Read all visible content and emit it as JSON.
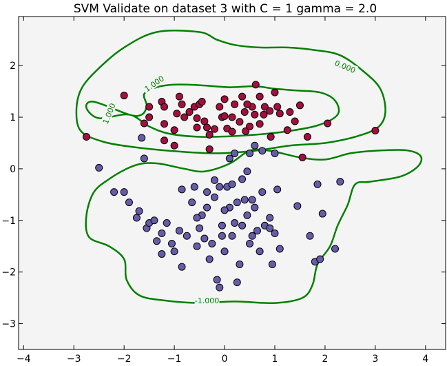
{
  "chart_data": {
    "type": "scatter",
    "title": "SVM Validate on dataset 3 with C = 1 gamma = 2.0",
    "xlabel": "",
    "ylabel": "",
    "xlim": [
      -4.1,
      4.4
    ],
    "ylim": [
      -3.5,
      2.95
    ],
    "x_ticks": [
      -4,
      -3,
      -2,
      -1,
      0,
      1,
      2,
      3,
      4
    ],
    "y_ticks": [
      -3,
      -2,
      -1,
      0,
      1,
      2
    ],
    "x_tick_labels": [
      "−4",
      "−3",
      "−2",
      "−1",
      "0",
      "1",
      "2",
      "3",
      "4"
    ],
    "y_tick_labels": [
      "−3",
      "−2",
      "−1",
      "0",
      "1",
      "2"
    ],
    "grid": false,
    "background_color": "#f4f4f4",
    "contour_color": "#008000",
    "contour_labels": [
      {
        "text": "0.000",
        "x": 2.4,
        "y": 1.98,
        "rotate": 22
      },
      {
        "text": "1.000",
        "x": -1.4,
        "y": 1.65,
        "rotate": -35
      },
      {
        "text": "1.000",
        "x": -2.3,
        "y": 1.07,
        "rotate": -68
      },
      {
        "text": "-1.000",
        "x": -0.35,
        "y": -2.55,
        "rotate": 0
      }
    ],
    "contours": [
      {
        "level": 0.0,
        "points": [
          [
            -1.35,
            2.65
          ],
          [
            -2.0,
            2.35
          ],
          [
            -2.5,
            1.95
          ],
          [
            -2.85,
            1.55
          ],
          [
            -2.95,
            1.1
          ],
          [
            -2.85,
            0.72
          ],
          [
            -2.4,
            0.52
          ],
          [
            -1.8,
            0.42
          ],
          [
            -1.1,
            0.35
          ],
          [
            -0.2,
            0.3
          ],
          [
            0.6,
            0.35
          ],
          [
            1.3,
            0.45
          ],
          [
            2.0,
            0.5
          ],
          [
            2.6,
            0.62
          ],
          [
            3.05,
            0.8
          ],
          [
            3.2,
            1.1
          ],
          [
            3.1,
            1.55
          ],
          [
            2.75,
            1.9
          ],
          [
            2.3,
            2.2
          ],
          [
            1.8,
            2.3
          ],
          [
            1.25,
            2.35
          ],
          [
            0.7,
            2.35
          ],
          [
            0.2,
            2.4
          ],
          [
            -0.15,
            2.5
          ],
          [
            -0.5,
            2.65
          ]
        ]
      },
      {
        "level": 1.0,
        "points": [
          [
            -2.6,
            1.3
          ],
          [
            -2.75,
            1.18
          ],
          [
            -2.5,
            0.98
          ],
          [
            -1.9,
            1.05
          ],
          [
            -1.5,
            0.82
          ],
          [
            -1.1,
            0.68
          ],
          [
            -0.5,
            0.62
          ],
          [
            0.1,
            0.63
          ],
          [
            0.6,
            0.66
          ],
          [
            1.2,
            0.72
          ],
          [
            1.85,
            0.84
          ],
          [
            2.25,
            1.05
          ],
          [
            2.2,
            1.32
          ],
          [
            1.9,
            1.48
          ],
          [
            1.4,
            1.52
          ],
          [
            1.0,
            1.55
          ],
          [
            0.6,
            1.6
          ],
          [
            0.1,
            1.58
          ],
          [
            -0.5,
            1.62
          ],
          [
            -1.0,
            1.63
          ],
          [
            -1.35,
            1.58
          ],
          [
            -1.6,
            1.45
          ],
          [
            -1.55,
            1.22
          ],
          [
            -1.65,
            1.05
          ],
          [
            -1.9,
            1.05
          ]
        ]
      },
      {
        "level": -1.0,
        "points": [
          [
            -1.65,
            0.1
          ],
          [
            -1.3,
            0.1
          ],
          [
            -0.8,
            0.0
          ],
          [
            -0.4,
            -0.05
          ],
          [
            0.1,
            0.1
          ],
          [
            0.5,
            0.35
          ],
          [
            0.9,
            0.35
          ],
          [
            1.5,
            0.22
          ],
          [
            2.0,
            0.18
          ],
          [
            2.5,
            0.3
          ],
          [
            3.0,
            0.35
          ],
          [
            3.6,
            0.36
          ],
          [
            3.9,
            0.25
          ],
          [
            3.85,
            0.05
          ],
          [
            3.5,
            -0.15
          ],
          [
            2.9,
            -0.25
          ],
          [
            2.6,
            -0.3
          ],
          [
            2.45,
            -0.7
          ],
          [
            2.25,
            -1.1
          ],
          [
            2.1,
            -1.5
          ],
          [
            1.85,
            -1.85
          ],
          [
            1.75,
            -2.25
          ],
          [
            1.55,
            -2.5
          ],
          [
            1.0,
            -2.6
          ],
          [
            0.2,
            -2.57
          ],
          [
            -0.5,
            -2.6
          ],
          [
            -1.2,
            -2.55
          ],
          [
            -1.7,
            -2.45
          ],
          [
            -1.95,
            -2.15
          ],
          [
            -2.0,
            -1.75
          ],
          [
            -2.3,
            -1.5
          ],
          [
            -2.7,
            -1.32
          ],
          [
            -2.75,
            -0.9
          ],
          [
            -2.6,
            -0.45
          ],
          [
            -2.3,
            -0.2
          ],
          [
            -1.95,
            0.0
          ]
        ]
      }
    ],
    "series": [
      {
        "color": "#a50f3f",
        "points": [
          [
            -2.75,
            0.62
          ],
          [
            -2.0,
            1.42
          ],
          [
            -1.6,
            0.88
          ],
          [
            -1.5,
            1.0
          ],
          [
            -1.5,
            1.2
          ],
          [
            -1.25,
            1.3
          ],
          [
            -1.2,
            1.2
          ],
          [
            -1.2,
            0.87
          ],
          [
            -1.2,
            0.55
          ],
          [
            -1.0,
            0.45
          ],
          [
            -0.95,
            1.07
          ],
          [
            -1.0,
            0.75
          ],
          [
            -0.8,
            1.0
          ],
          [
            -0.9,
            1.4
          ],
          [
            -0.85,
            1.25
          ],
          [
            -0.7,
            1.1
          ],
          [
            -0.6,
            1.2
          ],
          [
            -0.55,
            0.8
          ],
          [
            -0.5,
            1.25
          ],
          [
            -0.45,
            1.3
          ],
          [
            -0.4,
            0.92
          ],
          [
            -0.35,
            0.8
          ],
          [
            -0.3,
            0.38
          ],
          [
            -0.3,
            0.66
          ],
          [
            -0.2,
            0.77
          ],
          [
            -0.1,
            1.2
          ],
          [
            -0.05,
            1.0
          ],
          [
            0.0,
            1.35
          ],
          [
            0.05,
            0.78
          ],
          [
            0.15,
            1.0
          ],
          [
            0.2,
            1.25
          ],
          [
            0.3,
            0.91
          ],
          [
            0.35,
            1.4
          ],
          [
            0.4,
            1.1
          ],
          [
            0.42,
            0.73
          ],
          [
            0.5,
            0.82
          ],
          [
            0.55,
            1.2
          ],
          [
            0.6,
            1.05
          ],
          [
            0.62,
            1.63
          ],
          [
            0.7,
            0.87
          ],
          [
            0.78,
            1.05
          ],
          [
            0.8,
            1.2
          ],
          [
            0.9,
            1.12
          ],
          [
            1.0,
            1.48
          ],
          [
            1.05,
            1.2
          ],
          [
            0.92,
            0.62
          ],
          [
            1.1,
            1.07
          ],
          [
            1.25,
            0.75
          ],
          [
            1.3,
            1.1
          ],
          [
            1.4,
            0.92
          ],
          [
            1.5,
            1.23
          ],
          [
            1.65,
            0.62
          ],
          [
            1.55,
            0.22
          ],
          [
            2.05,
            0.88
          ],
          [
            3.0,
            0.74
          ],
          [
            0.7,
            1.4
          ],
          [
            -0.55,
            0.98
          ],
          [
            0.0,
            1.02
          ],
          [
            0.45,
            1.25
          ],
          [
            0.15,
            0.72
          ]
        ]
      },
      {
        "color": "#675caa",
        "points": [
          [
            -2.5,
            0.02
          ],
          [
            -2.2,
            -0.45
          ],
          [
            -2.0,
            -0.45
          ],
          [
            -1.9,
            -0.65
          ],
          [
            -1.75,
            -0.95
          ],
          [
            -1.7,
            -0.82
          ],
          [
            -1.65,
            0.6
          ],
          [
            -1.6,
            0.2
          ],
          [
            -1.55,
            -1.15
          ],
          [
            -1.5,
            -1.05
          ],
          [
            -1.4,
            -1.0
          ],
          [
            -1.25,
            -1.65
          ],
          [
            -1.15,
            -1.05
          ],
          [
            -1.05,
            -1.45
          ],
          [
            -1.0,
            -1.6
          ],
          [
            -0.9,
            -1.2
          ],
          [
            -0.85,
            -1.9
          ],
          [
            -0.85,
            -0.4
          ],
          [
            -0.75,
            -1.3
          ],
          [
            -0.65,
            -0.65
          ],
          [
            -0.6,
            -0.35
          ],
          [
            -0.55,
            -1.5
          ],
          [
            -0.5,
            -1.15
          ],
          [
            -0.45,
            -0.9
          ],
          [
            -0.4,
            -1.35
          ],
          [
            -0.35,
            -0.75
          ],
          [
            -0.3,
            -1.75
          ],
          [
            -0.25,
            -1.45
          ],
          [
            -0.2,
            -0.55
          ],
          [
            -0.15,
            -2.15
          ],
          [
            -0.1,
            -2.3
          ],
          [
            -0.05,
            -1.1
          ],
          [
            0.0,
            -1.6
          ],
          [
            0.05,
            -0.35
          ],
          [
            0.1,
            -0.75
          ],
          [
            0.15,
            -1.3
          ],
          [
            0.2,
            0.3
          ],
          [
            0.25,
            -0.65
          ],
          [
            0.3,
            -1.85
          ],
          [
            0.35,
            -1.1
          ],
          [
            0.4,
            -0.6
          ],
          [
            0.45,
            -0.9
          ],
          [
            0.5,
            -1.45
          ],
          [
            0.55,
            -1.3
          ],
          [
            0.6,
            -0.75
          ],
          [
            0.65,
            -1.2
          ],
          [
            0.7,
            -1.6
          ],
          [
            0.75,
            -0.45
          ],
          [
            0.8,
            -1.1
          ],
          [
            0.9,
            -0.95
          ],
          [
            1.0,
            -1.25
          ],
          [
            1.05,
            -0.4
          ],
          [
            0.95,
            -1.85
          ],
          [
            1.1,
            -1.55
          ],
          [
            1.45,
            -0.72
          ],
          [
            1.7,
            -1.3
          ],
          [
            1.8,
            -1.8
          ],
          [
            1.9,
            -1.75
          ],
          [
            1.95,
            -0.87
          ],
          [
            1.85,
            -0.3
          ],
          [
            2.3,
            -0.25
          ],
          [
            2.2,
            -1.55
          ],
          [
            -0.2,
            -0.22
          ],
          [
            0.0,
            -0.8
          ],
          [
            0.15,
            -0.3
          ],
          [
            0.25,
            -2.2
          ],
          [
            0.5,
            0.3
          ],
          [
            0.6,
            0.45
          ],
          [
            0.75,
            0.35
          ],
          [
            1.0,
            0.3
          ],
          [
            0.1,
            0.2
          ],
          [
            -0.1,
            -0.35
          ],
          [
            0.45,
            -0.05
          ],
          [
            -0.35,
            -0.45
          ],
          [
            -0.55,
            -0.95
          ],
          [
            -1.25,
            -1.25
          ],
          [
            -1.35,
            -1.4
          ],
          [
            0.35,
            -0.2
          ],
          [
            0.55,
            -0.6
          ],
          [
            0.9,
            -1.15
          ],
          [
            -0.05,
            -1.3
          ],
          [
            0.2,
            -1.05
          ]
        ]
      }
    ]
  }
}
